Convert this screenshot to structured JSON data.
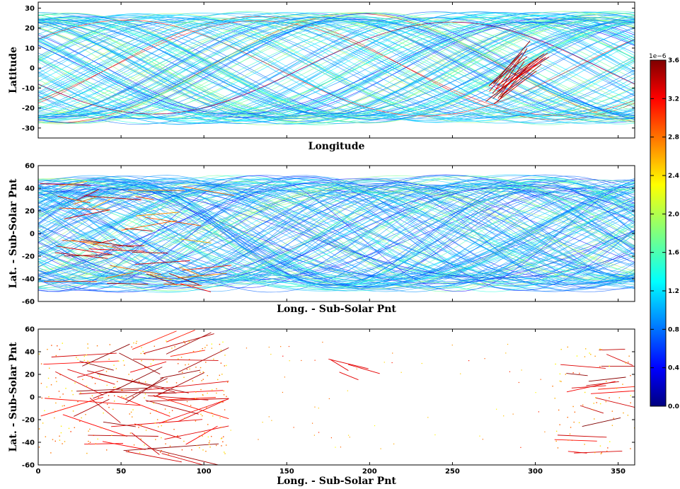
{
  "chart_data": [
    {
      "type": "scatter",
      "xlabel": "Longitude",
      "ylabel": "Latitude",
      "xlim": [
        0,
        360
      ],
      "ylim": [
        -35,
        33
      ],
      "yticks": [
        -30,
        -20,
        -10,
        0,
        10,
        20,
        30
      ],
      "xticks": [
        0,
        50,
        100,
        150,
        200,
        250,
        300,
        350
      ],
      "show_xtick_labels": false,
      "description_values": {
        "lat_band": [
          -28.5,
          28.5
        ],
        "high_value_tracks_lon_range": [
          270,
          325
        ]
      }
    },
    {
      "type": "scatter",
      "xlabel": "Long. - Sub-Solar Pnt",
      "ylabel": "Lat. - Sub-Solar Pnt",
      "xlim": [
        0,
        360
      ],
      "ylim": [
        -60,
        60
      ],
      "yticks": [
        -60,
        -40,
        -20,
        0,
        20,
        40,
        60
      ],
      "xticks": [
        0,
        50,
        100,
        150,
        200,
        250,
        300,
        350
      ],
      "show_xtick_labels": false,
      "description_values": {
        "lat_band": [
          -52,
          52
        ],
        "high_value_lon_range": [
          0,
          110
        ]
      }
    },
    {
      "type": "scatter",
      "xlabel": "Long. - Sub-Solar Pnt",
      "ylabel": "Lat. - Sub-Solar Pnt",
      "xlim": [
        0,
        360
      ],
      "ylim": [
        -60,
        60
      ],
      "yticks": [
        -60,
        -40,
        -20,
        0,
        20,
        40,
        60
      ],
      "xticks": [
        0,
        50,
        100,
        150,
        200,
        250,
        300,
        350
      ],
      "xtick_labels": [
        "0",
        "50",
        "100",
        "150",
        "200",
        "250",
        "300",
        "350"
      ],
      "show_xtick_labels": true,
      "description_values": {
        "dense_lon_range": [
          0,
          115
        ],
        "secondary_lon_range": [
          310,
          360
        ]
      }
    }
  ],
  "colorbar": {
    "exponent_label": "1e−6",
    "min": 0.0,
    "max": 3.6,
    "tick_labels": [
      "0.0",
      "0.4",
      "0.8",
      "1.2",
      "1.6",
      "2.0",
      "2.4",
      "2.8",
      "3.2",
      "3.6"
    ],
    "tick_values": [
      0.0,
      0.4,
      0.8,
      1.2,
      1.6,
      2.0,
      2.4,
      2.8,
      3.2,
      3.6
    ],
    "colormap": [
      "#00007f",
      "#0000ff",
      "#007fff",
      "#00ffff",
      "#7fff7f",
      "#ffff00",
      "#ff7f00",
      "#ff0000",
      "#7f0000"
    ]
  }
}
